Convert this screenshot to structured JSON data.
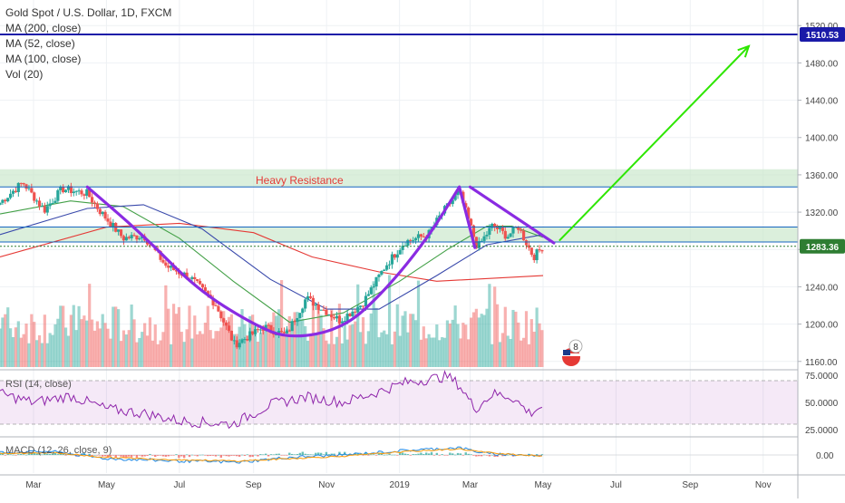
{
  "legend": {
    "symbol": "Gold Spot / U.S. Dollar, 1D, FXCM",
    "ma200": "MA (200, close)",
    "ma52": "MA (52, close)",
    "ma100": "MA (100, close)",
    "vol": "Vol (20)"
  },
  "rsi_label": "RSI (14, close)",
  "macd_label": "MACD (12, 26, close, 9)",
  "annotation_text": "Heavy Resistance",
  "badge_count": "8",
  "chart_data": [
    {
      "type": "candlestick",
      "panel": "price",
      "x_axis": {
        "tick_labels": [
          "Mar",
          "May",
          "Jul",
          "Sep",
          "Nov",
          "2019",
          "Mar",
          "May",
          "Jul",
          "Sep",
          "Nov"
        ],
        "range": [
          "2018-02-01",
          "2019-11-30"
        ]
      },
      "y_axis": {
        "tick_labels": [
          "1160.00",
          "1200.00",
          "1240.00",
          "1280.00",
          "1320.00",
          "1360.00",
          "1400.00",
          "1440.00",
          "1480.00",
          "1520.00"
        ],
        "range": [
          1152,
          1528
        ],
        "side": "right"
      },
      "price_markers": [
        {
          "label": "1510.53",
          "value": 1510.53,
          "color": "#1a1aa8"
        },
        {
          "label": "1283.36",
          "value": 1283.36,
          "color": "#2e7d32"
        }
      ],
      "close_path": [
        [
          "2018-02-01",
          1330
        ],
        [
          "2018-02-20",
          1352
        ],
        [
          "2018-03-10",
          1322
        ],
        [
          "2018-03-25",
          1345
        ],
        [
          "2018-04-15",
          1340
        ],
        [
          "2018-04-25",
          1322
        ],
        [
          "2018-05-15",
          1292
        ],
        [
          "2018-06-01",
          1295
        ],
        [
          "2018-06-20",
          1262
        ],
        [
          "2018-07-10",
          1250
        ],
        [
          "2018-07-31",
          1222
        ],
        [
          "2018-08-16",
          1178
        ],
        [
          "2018-09-10",
          1197
        ],
        [
          "2018-09-28",
          1188
        ],
        [
          "2018-10-15",
          1228
        ],
        [
          "2018-11-12",
          1204
        ],
        [
          "2018-12-01",
          1222
        ],
        [
          "2018-12-20",
          1262
        ],
        [
          "2019-01-05",
          1288
        ],
        [
          "2019-01-25",
          1296
        ],
        [
          "2019-02-05",
          1318
        ],
        [
          "2019-02-20",
          1342
        ],
        [
          "2019-03-07",
          1282
        ],
        [
          "2019-03-20",
          1306
        ],
        [
          "2019-04-01",
          1294
        ],
        [
          "2019-04-10",
          1305
        ],
        [
          "2019-04-23",
          1272
        ],
        [
          "2019-05-01",
          1283.36
        ]
      ],
      "moving_averages": [
        {
          "name": "MA (200, close)",
          "color": "#e53935",
          "points": [
            [
              "2018-02-01",
              1272
            ],
            [
              "2018-05-01",
              1304
            ],
            [
              "2018-07-01",
              1308
            ],
            [
              "2018-09-01",
              1298
            ],
            [
              "2018-10-20",
              1272
            ],
            [
              "2018-12-15",
              1256
            ],
            [
              "2019-02-01",
              1246
            ],
            [
              "2019-05-01",
              1252
            ]
          ]
        },
        {
          "name": "MA (52, close)",
          "color": "#43a047",
          "points": [
            [
              "2018-02-01",
              1318
            ],
            [
              "2018-04-01",
              1332
            ],
            [
              "2018-05-15",
              1326
            ],
            [
              "2018-07-01",
              1292
            ],
            [
              "2018-08-15",
              1246
            ],
            [
              "2018-10-01",
              1202
            ],
            [
              "2018-11-15",
              1212
            ],
            [
              "2019-01-01",
              1246
            ],
            [
              "2019-02-10",
              1280
            ],
            [
              "2019-03-15",
              1305
            ],
            [
              "2019-04-05",
              1305
            ],
            [
              "2019-05-01",
              1293
            ]
          ]
        },
        {
          "name": "MA (100, close)",
          "color": "#3949ab",
          "points": [
            [
              "2018-02-01",
              1296
            ],
            [
              "2018-04-15",
              1324
            ],
            [
              "2018-06-01",
              1328
            ],
            [
              "2018-07-20",
              1302
            ],
            [
              "2018-09-15",
              1248
            ],
            [
              "2018-11-01",
              1216
            ],
            [
              "2018-12-15",
              1216
            ],
            [
              "2019-02-01",
              1252
            ],
            [
              "2019-03-15",
              1285
            ],
            [
              "2019-05-01",
              1296
            ]
          ]
        }
      ],
      "horizontal_lines": [
        1510.53,
        1347,
        1304,
        1288,
        1283.36
      ],
      "resistance_zones": [
        {
          "label": "Heavy Resistance",
          "from": 1347,
          "to": 1366
        },
        {
          "label": "",
          "from": 1288,
          "to": 1304
        }
      ]
    },
    {
      "type": "bar",
      "panel": "volume",
      "name": "Vol (20)",
      "up_color": "#26a69a",
      "down_color": "#ef5350"
    },
    {
      "type": "line",
      "panel": "rsi",
      "name": "RSI (14, close)",
      "y_axis": {
        "tick_labels": [
          "25.0000",
          "50.0000",
          "75.0000"
        ],
        "range": [
          20,
          80
        ],
        "band": [
          30,
          70
        ]
      },
      "points": [
        [
          "2018-02-01",
          58
        ],
        [
          "2018-03-01",
          50
        ],
        [
          "2018-04-01",
          56
        ],
        [
          "2018-05-01",
          44
        ],
        [
          "2018-06-01",
          40
        ],
        [
          "2018-07-01",
          33
        ],
        [
          "2018-08-15",
          30
        ],
        [
          "2018-09-15",
          48
        ],
        [
          "2018-10-15",
          55
        ],
        [
          "2018-11-15",
          50
        ],
        [
          "2018-12-15",
          60
        ],
        [
          "2019-01-05",
          68
        ],
        [
          "2019-02-10",
          74
        ],
        [
          "2019-02-20",
          66
        ],
        [
          "2019-03-05",
          44
        ],
        [
          "2019-03-20",
          58
        ],
        [
          "2019-04-05",
          55
        ],
        [
          "2019-04-20",
          40
        ],
        [
          "2019-05-01",
          47
        ]
      ]
    },
    {
      "type": "line",
      "panel": "macd",
      "name": "MACD (12, 26, close, 9)",
      "y_axis": {
        "tick_labels": [
          "0.00"
        ],
        "range": [
          -15,
          15
        ]
      },
      "series": [
        {
          "name": "MACD",
          "color": "#1e88e5",
          "points": [
            [
              "2018-02-01",
              2
            ],
            [
              "2018-03-15",
              3
            ],
            [
              "2018-05-01",
              -3
            ],
            [
              "2018-07-01",
              -5
            ],
            [
              "2018-08-20",
              -6
            ],
            [
              "2018-10-01",
              -2
            ],
            [
              "2018-11-15",
              0
            ],
            [
              "2019-01-10",
              4
            ],
            [
              "2019-02-20",
              6
            ],
            [
              "2019-03-15",
              1
            ],
            [
              "2019-04-15",
              0
            ],
            [
              "2019-05-01",
              -1
            ]
          ]
        },
        {
          "name": "Signal",
          "color": "#ff9800",
          "points": [
            [
              "2018-02-01",
              1
            ],
            [
              "2018-03-15",
              2
            ],
            [
              "2018-05-01",
              -2
            ],
            [
              "2018-07-01",
              -4
            ],
            [
              "2018-08-20",
              -5
            ],
            [
              "2018-10-01",
              -3
            ],
            [
              "2018-11-15",
              -1
            ],
            [
              "2019-01-10",
              3
            ],
            [
              "2019-02-20",
              5
            ],
            [
              "2019-03-15",
              2
            ],
            [
              "2019-04-15",
              0
            ],
            [
              "2019-05-01",
              -1
            ]
          ]
        }
      ]
    }
  ],
  "drawings": [
    {
      "name": "cup-curve",
      "color": "#8a2be2",
      "points": [
        [
          "2018-04-15",
          1347
        ],
        [
          "2018-06-01",
          1295
        ],
        [
          "2018-07-15",
          1238
        ],
        [
          "2018-08-31",
          1200
        ],
        [
          "2018-10-01",
          1184
        ],
        [
          "2018-11-15",
          1195
        ],
        [
          "2018-12-20",
          1236
        ],
        [
          "2019-01-25",
          1293
        ],
        [
          "2019-02-20",
          1347
        ]
      ]
    },
    {
      "name": "handle-line",
      "color": "#8a2be2",
      "points": [
        [
          "2019-02-20",
          1347
        ],
        [
          "2019-03-05",
          1282
        ]
      ]
    },
    {
      "name": "descending-trendline",
      "color": "#8a2be2",
      "points": [
        [
          "2019-03-01",
          1347
        ],
        [
          "2019-05-10",
          1287
        ]
      ]
    },
    {
      "name": "target-arrow",
      "color": "#2ee600",
      "points": [
        [
          "2019-05-15",
          1290
        ],
        [
          "2019-10-20",
          1498
        ]
      ]
    }
  ],
  "colors": {
    "up": "#26a69a",
    "down": "#ef5350",
    "zone_fill": "#c8e6c9",
    "grid": "#eef1f4"
  }
}
